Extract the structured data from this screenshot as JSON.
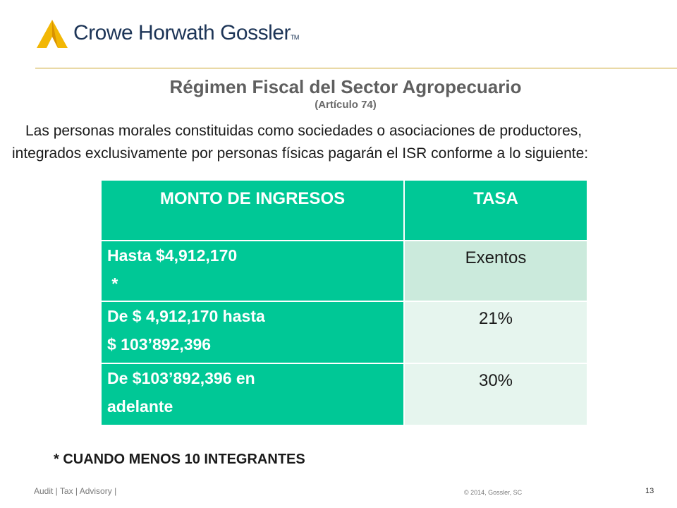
{
  "header": {
    "logo_text": "Crowe Horwath Gossler",
    "logo_tm": "TM",
    "logo_icon": "crowe-triangle-logo-icon",
    "accent_color": "#c9a227"
  },
  "title": "Régimen Fiscal del Sector Agropecuario",
  "subtitle": "(Artículo 74)",
  "intro": {
    "line1": "Las personas morales constituidas como sociedades o asociaciones de productores,",
    "line2": "integrados exclusivamente por personas físicas pagarán el ISR conforme a lo siguiente:"
  },
  "table": {
    "header_color": "#00c896",
    "headers": [
      "MONTO DE INGRESOS",
      "TASA"
    ],
    "rows": [
      {
        "monto_line1": "Hasta $4,912,170",
        "monto_line2": " *",
        "tasa": "Exentos"
      },
      {
        "monto_line1": "De $ 4,912,170 hasta",
        "monto_line2": "$ 103’892,396",
        "tasa": "21%"
      },
      {
        "monto_line1_a": "De",
        "monto_line1_b": "$103’892,396",
        "monto_line1_c": "en",
        "monto_line2": "adelante",
        "tasa": "30%"
      }
    ]
  },
  "footnote": "* CUANDO MENOS 10 INTEGRANTES",
  "footer": {
    "left": "Audit | Tax | Advisory |",
    "copyright": "© 2014, Gossler, SC",
    "page": "13"
  }
}
